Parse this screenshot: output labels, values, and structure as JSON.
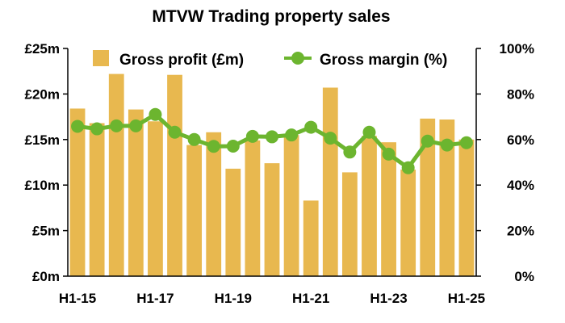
{
  "chart_data": {
    "type": "bar",
    "title": "MTVW Trading property sales",
    "categories": [
      "H1-15",
      "H2-15",
      "H1-16",
      "H2-16",
      "H1-17",
      "H2-17",
      "H1-18",
      "H2-18",
      "H1-19",
      "H2-19",
      "H1-20",
      "H2-20",
      "H1-21",
      "H2-21",
      "H1-22",
      "H2-22",
      "H1-23",
      "H2-23",
      "H1-24",
      "H2-24",
      "H1-25"
    ],
    "x_tick_labels": [
      "H1-15",
      "H1-17",
      "H1-19",
      "H1-21",
      "H1-23",
      "H1-25"
    ],
    "series": [
      {
        "name": "Gross profit (£m)",
        "type": "bar",
        "axis": "left",
        "color": "#E8B84F",
        "values": [
          18.4,
          16.8,
          22.2,
          18.3,
          17.0,
          22.1,
          14.4,
          15.8,
          11.8,
          14.9,
          12.4,
          15.5,
          8.3,
          20.7,
          11.4,
          15.4,
          14.7,
          11.7,
          17.3,
          17.2,
          15.0
        ]
      },
      {
        "name": "Gross margin (%)",
        "type": "line",
        "axis": "right",
        "color": "#6CB52F",
        "values": [
          65.8,
          64.7,
          66.0,
          66.0,
          71.0,
          63.2,
          60.0,
          57.0,
          57.1,
          61.4,
          61.2,
          62.0,
          65.4,
          60.6,
          54.5,
          63.2,
          53.6,
          47.6,
          59.3,
          57.6,
          58.6
        ]
      }
    ],
    "y_left": {
      "ticks": [
        "£0m",
        "£5m",
        "£10m",
        "£15m",
        "£20m",
        "£25m"
      ],
      "range": [
        0,
        25
      ]
    },
    "y_right": {
      "ticks": [
        "0%",
        "20%",
        "40%",
        "60%",
        "80%",
        "100%"
      ],
      "range": [
        0,
        100
      ]
    },
    "legend_position": "top",
    "grid": false
  }
}
